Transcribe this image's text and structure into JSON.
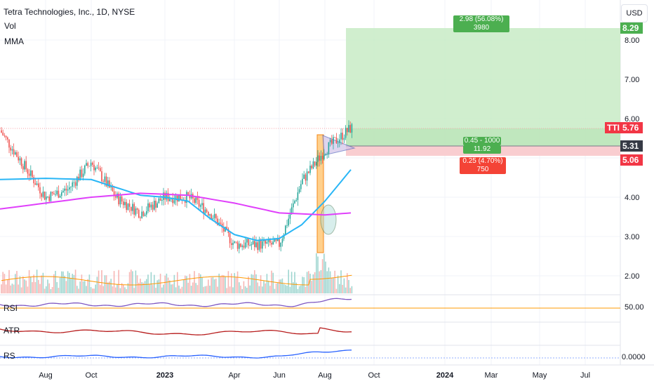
{
  "header": {
    "title": "Tetra Technologies, Inc., 1D, NYSE",
    "vol_label": "Vol",
    "mma_label": "MMA",
    "currency": "USD"
  },
  "panes": {
    "rsi_label": "RSI",
    "rsi_value": "50.00",
    "atr_label": "ATR",
    "rs_label": "RS",
    "rs_value": "0.0000"
  },
  "position": {
    "target_label": "2.98 (56.08%) 3980",
    "entry_label_1": "0.45 - 1000",
    "entry_label_2": "11.92",
    "stop_label": "0.25 (4.70%) 750",
    "target_price": "8.29",
    "entry_price": "5.31",
    "stop_price": "5.06",
    "ticker": "TTI",
    "last_price": "5.76"
  },
  "colors": {
    "up": "#26a69a",
    "down": "#ef5350",
    "ma_fast": "#29b6f6",
    "ma_slow": "#e040fb",
    "target_fill": "#c8ebc6",
    "stop_fill": "#f9cdd0",
    "rsi": "#7e57c2",
    "atr": "#b71c1c",
    "rs": "#2962ff"
  },
  "chart_data": {
    "type": "candlestick",
    "title": "Tetra Technologies, Inc., 1D, NYSE",
    "x_ticks": [
      "Aug",
      "Oct",
      "2023",
      "Apr",
      "Jun",
      "Aug",
      "Oct",
      "2024",
      "Mar",
      "May",
      "Jul"
    ],
    "y_ticks": [
      "8.00",
      "7.00",
      "6.00",
      "4.00",
      "3.00",
      "2.00"
    ],
    "ylim": [
      1.5,
      8.8
    ],
    "series": [
      {
        "name": "Price",
        "x": [
          "2022-07",
          "2022-08",
          "2022-09",
          "2022-10",
          "2022-11",
          "2022-12",
          "2023-01",
          "2023-02",
          "2023-03",
          "2023-04",
          "2023-05",
          "2023-06",
          "2023-07",
          "2023-08",
          "2023-09"
        ],
        "values": [
          5.7,
          4.0,
          4.2,
          4.9,
          4.0,
          3.6,
          4.0,
          4.0,
          3.6,
          2.8,
          2.8,
          2.8,
          4.4,
          5.2,
          5.76
        ]
      },
      {
        "name": "MA fast",
        "x": [
          "2022-07",
          "2022-08",
          "2022-10",
          "2022-12",
          "2023-01",
          "2023-02",
          "2023-03",
          "2023-04",
          "2023-05",
          "2023-06",
          "2023-07",
          "2023-08",
          "2023-09"
        ],
        "values": [
          4.45,
          4.48,
          4.45,
          4.05,
          4.0,
          3.9,
          3.45,
          3.05,
          2.9,
          2.95,
          3.3,
          3.9,
          4.7
        ]
      },
      {
        "name": "MA slow",
        "x": [
          "2022-07",
          "2022-08",
          "2022-10",
          "2022-12",
          "2023-02",
          "2023-04",
          "2023-06",
          "2023-08",
          "2023-09"
        ],
        "values": [
          3.7,
          3.85,
          4.0,
          4.1,
          4.05,
          3.85,
          3.6,
          3.55,
          3.6
        ]
      }
    ]
  }
}
